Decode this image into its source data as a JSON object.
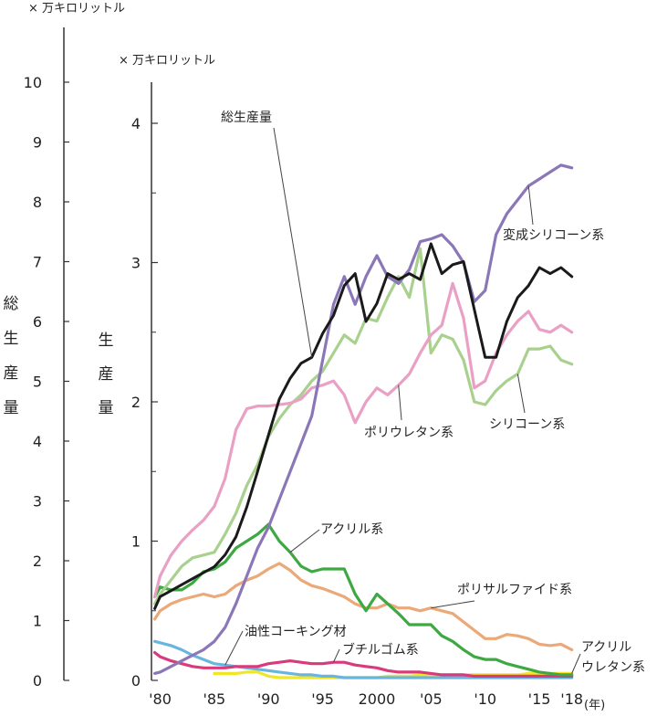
{
  "chart_data": {
    "type": "line",
    "left_axis": {
      "unit": "× 万キロリットル",
      "title": [
        "総",
        "生",
        "産",
        "量"
      ],
      "ticks": [
        "0",
        "1",
        "2",
        "3",
        "4",
        "5",
        "6",
        "7",
        "8",
        "9",
        "10"
      ],
      "ylim": [
        0,
        10
      ]
    },
    "right_axis": {
      "unit": "× 万キロリットル",
      "title": [
        "生",
        "産",
        "量"
      ],
      "ticks": [
        "0",
        "1",
        "2",
        "3",
        "4"
      ],
      "ylim": [
        0,
        4.3
      ]
    },
    "x_axis": {
      "tick_labels": [
        "'80",
        "'85",
        "'90",
        "'95",
        "2000",
        "'05",
        "'10",
        "'15",
        "'18"
      ],
      "tick_years": [
        1980,
        1985,
        1990,
        1995,
        2000,
        2005,
        2010,
        2015,
        2018
      ],
      "unit": "(年)",
      "xlim": [
        1979.2,
        2018.7
      ]
    },
    "series": [
      {
        "name": "総生産量",
        "axis": "left",
        "color": "#1a1a1a",
        "x": [
          1979.5,
          1980,
          1981,
          1982,
          1983,
          1984,
          1985,
          1986,
          1987,
          1988,
          1989,
          1990,
          1991,
          1992,
          1993,
          1994,
          1995,
          1996,
          1997,
          1998,
          1999,
          2000,
          2001,
          2002,
          2003,
          2004,
          2005,
          2006,
          2007,
          2008,
          2009,
          2010,
          2011,
          2012,
          2013,
          2014,
          2015,
          2016,
          2017,
          2018
        ],
        "values": [
          1.2,
          1.4,
          1.5,
          1.6,
          1.7,
          1.8,
          1.9,
          2.1,
          2.4,
          2.9,
          3.5,
          4.1,
          4.7,
          5.05,
          5.3,
          5.4,
          5.8,
          6.1,
          6.6,
          6.8,
          6.0,
          6.3,
          6.8,
          6.7,
          6.8,
          6.7,
          7.3,
          6.8,
          6.95,
          7.0,
          6.2,
          5.4,
          5.4,
          6.0,
          6.4,
          6.6,
          6.9,
          6.8,
          6.9,
          6.75
        ]
      },
      {
        "name": "変成シリコーン系",
        "axis": "right",
        "color": "#8b77b8",
        "x": [
          1979.5,
          1980,
          1981,
          1982,
          1983,
          1984,
          1985,
          1986,
          1987,
          1988,
          1989,
          1990,
          1991,
          1992,
          1993,
          1994,
          1995,
          1996,
          1997,
          1998,
          1999,
          2000,
          2001,
          2002,
          2003,
          2004,
          2005,
          2006,
          2007,
          2008,
          2009,
          2010,
          2011,
          2012,
          2013,
          2014,
          2015,
          2016,
          2017,
          2018
        ],
        "values": [
          0.05,
          0.06,
          0.1,
          0.14,
          0.18,
          0.22,
          0.28,
          0.38,
          0.55,
          0.75,
          0.95,
          1.1,
          1.3,
          1.5,
          1.7,
          1.9,
          2.3,
          2.7,
          2.9,
          2.7,
          2.9,
          3.05,
          2.9,
          2.85,
          2.95,
          3.15,
          3.17,
          3.2,
          3.12,
          3.0,
          2.72,
          2.8,
          3.2,
          3.35,
          3.45,
          3.55,
          3.6,
          3.65,
          3.7,
          3.68
        ]
      },
      {
        "name": "ポリウレタン系",
        "axis": "right",
        "color": "#eaa0c5",
        "x": [
          1979.5,
          1980,
          1981,
          1982,
          1983,
          1984,
          1985,
          1986,
          1987,
          1988,
          1989,
          1990,
          1991,
          1992,
          1993,
          1994,
          1995,
          1996,
          1997,
          1998,
          1999,
          2000,
          2001,
          2002,
          2003,
          2004,
          2005,
          2006,
          2007,
          2008,
          2009,
          2010,
          2011,
          2012,
          2013,
          2014,
          2015,
          2016,
          2017,
          2018
        ],
        "values": [
          0.6,
          0.75,
          0.9,
          1.0,
          1.08,
          1.15,
          1.25,
          1.45,
          1.8,
          1.95,
          1.97,
          1.97,
          1.98,
          1.99,
          2.02,
          2.1,
          2.12,
          2.15,
          2.05,
          1.85,
          2.0,
          2.1,
          2.05,
          2.12,
          2.2,
          2.35,
          2.48,
          2.55,
          2.85,
          2.6,
          2.1,
          2.15,
          2.35,
          2.48,
          2.58,
          2.65,
          2.52,
          2.5,
          2.55,
          2.5
        ]
      },
      {
        "name": "シリコーン系",
        "axis": "right",
        "color": "#a9d18e",
        "x": [
          1979.5,
          1980,
          1981,
          1982,
          1983,
          1984,
          1985,
          1986,
          1987,
          1988,
          1989,
          1990,
          1991,
          1992,
          1993,
          1994,
          1995,
          1996,
          1997,
          1998,
          1999,
          2000,
          2001,
          2002,
          2003,
          2004,
          2005,
          2006,
          2007,
          2008,
          2009,
          2010,
          2011,
          2012,
          2013,
          2014,
          2015,
          2016,
          2017,
          2018
        ],
        "values": [
          0.55,
          0.62,
          0.72,
          0.82,
          0.88,
          0.9,
          0.92,
          1.05,
          1.2,
          1.4,
          1.55,
          1.75,
          1.88,
          1.98,
          2.05,
          2.15,
          2.22,
          2.35,
          2.48,
          2.42,
          2.6,
          2.58,
          2.75,
          2.9,
          2.75,
          3.1,
          2.35,
          2.48,
          2.45,
          2.3,
          2.0,
          1.98,
          2.08,
          2.15,
          2.2,
          2.38,
          2.38,
          2.4,
          2.3,
          2.27
        ]
      },
      {
        "name": "アクリル系",
        "axis": "right",
        "color": "#3ea843",
        "x": [
          1979.5,
          1980,
          1981,
          1982,
          1983,
          1984,
          1985,
          1986,
          1987,
          1988,
          1989,
          1990,
          1991,
          1992,
          1993,
          1994,
          1995,
          1996,
          1997,
          1998,
          1999,
          2000,
          2001,
          2002,
          2003,
          2004,
          2005,
          2006,
          2007,
          2008,
          2009,
          2010,
          2011,
          2012,
          2013,
          2014,
          2015,
          2016,
          2017,
          2018
        ],
        "values": [
          0.6,
          0.67,
          0.65,
          0.65,
          0.7,
          0.78,
          0.8,
          0.85,
          0.95,
          1.0,
          1.05,
          1.12,
          1.0,
          0.92,
          0.82,
          0.78,
          0.8,
          0.8,
          0.8,
          0.62,
          0.5,
          0.62,
          0.55,
          0.48,
          0.4,
          0.4,
          0.4,
          0.32,
          0.28,
          0.22,
          0.17,
          0.15,
          0.15,
          0.12,
          0.1,
          0.08,
          0.06,
          0.05,
          0.04,
          0.04
        ]
      },
      {
        "name": "ポリサルファイド系",
        "axis": "right",
        "color": "#eba878",
        "x": [
          1979.5,
          1980,
          1981,
          1982,
          1983,
          1984,
          1985,
          1986,
          1987,
          1988,
          1989,
          1990,
          1991,
          1992,
          1993,
          1994,
          1995,
          1996,
          1997,
          1998,
          1999,
          2000,
          2001,
          2002,
          2003,
          2004,
          2005,
          2006,
          2007,
          2008,
          2009,
          2010,
          2011,
          2012,
          2013,
          2014,
          2015,
          2016,
          2017,
          2018
        ],
        "values": [
          0.44,
          0.5,
          0.55,
          0.58,
          0.6,
          0.62,
          0.6,
          0.62,
          0.68,
          0.72,
          0.75,
          0.8,
          0.84,
          0.79,
          0.72,
          0.68,
          0.66,
          0.63,
          0.6,
          0.55,
          0.52,
          0.52,
          0.55,
          0.52,
          0.52,
          0.5,
          0.52,
          0.5,
          0.48,
          0.42,
          0.36,
          0.3,
          0.3,
          0.33,
          0.32,
          0.3,
          0.26,
          0.25,
          0.26,
          0.22
        ]
      },
      {
        "name": "油性コーキング材",
        "axis": "right",
        "color": "#68b5e0",
        "x": [
          1979.5,
          1980,
          1981,
          1982,
          1983,
          1984,
          1985,
          1986,
          1987,
          1988,
          1989,
          1990,
          1991,
          1992,
          1993,
          1994,
          1995,
          1996,
          1997,
          1998,
          1999,
          2000,
          2001,
          2002,
          2003,
          2004,
          2005,
          2006,
          2007,
          2008,
          2009,
          2010,
          2011,
          2012,
          2013,
          2014,
          2015,
          2016,
          2017,
          2018
        ],
        "values": [
          0.28,
          0.27,
          0.25,
          0.22,
          0.18,
          0.15,
          0.12,
          0.11,
          0.1,
          0.09,
          0.08,
          0.07,
          0.06,
          0.05,
          0.04,
          0.04,
          0.03,
          0.03,
          0.02,
          0.02,
          0.02,
          0.02,
          0.02,
          0.02,
          0.02,
          0.02,
          0.02,
          0.02,
          0.02,
          0.02,
          0.02,
          0.02,
          0.02,
          0.02,
          0.02,
          0.02,
          0.02,
          0.02,
          0.02,
          0.02
        ]
      },
      {
        "name": "ブチルゴム系",
        "axis": "right",
        "color": "#d83a7c",
        "x": [
          1979.5,
          1980,
          1981,
          1982,
          1983,
          1984,
          1985,
          1986,
          1987,
          1988,
          1989,
          1990,
          1991,
          1992,
          1993,
          1994,
          1995,
          1996,
          1997,
          1998,
          1999,
          2000,
          2001,
          2002,
          2003,
          2004,
          2005,
          2006,
          2007,
          2008,
          2009,
          2010,
          2011,
          2012,
          2013,
          2014,
          2015,
          2016,
          2017,
          2018
        ],
        "values": [
          0.2,
          0.17,
          0.14,
          0.12,
          0.1,
          0.09,
          0.09,
          0.09,
          0.1,
          0.1,
          0.1,
          0.12,
          0.13,
          0.14,
          0.13,
          0.12,
          0.12,
          0.13,
          0.13,
          0.11,
          0.1,
          0.09,
          0.07,
          0.06,
          0.06,
          0.06,
          0.05,
          0.04,
          0.04,
          0.04,
          0.03,
          0.03,
          0.03,
          0.03,
          0.03,
          0.03,
          0.03,
          0.03,
          0.03,
          0.03
        ]
      },
      {
        "name": "アクリルウレタン系",
        "axis": "right",
        "color": "#f2e526",
        "x": [
          1985,
          1986,
          1987,
          1988,
          1989,
          1990,
          1991,
          1992,
          1993,
          1994,
          1995,
          1996,
          1997,
          1998,
          1999,
          2000,
          2001,
          2002,
          2003,
          2004,
          2005,
          2006,
          2007,
          2008,
          2009,
          2010,
          2011,
          2012,
          2013,
          2014,
          2015,
          2016,
          2017,
          2018
        ],
        "values": [
          0.05,
          0.05,
          0.05,
          0.06,
          0.06,
          0.03,
          0.02,
          0.02,
          0.02,
          0.02,
          0.02,
          0.02,
          0.02,
          0.02,
          0.02,
          0.02,
          0.03,
          0.03,
          0.03,
          0.04,
          0.04,
          0.04,
          0.04,
          0.04,
          0.04,
          0.04,
          0.04,
          0.04,
          0.04,
          0.05,
          0.05,
          0.05,
          0.05,
          0.05
        ]
      }
    ],
    "annotations": [
      {
        "text": "総生産量",
        "series": "総生産量"
      },
      {
        "text": "変成シリコーン系",
        "series": "変成シリコーン系"
      },
      {
        "text": "ポリウレタン系",
        "series": "ポリウレタン系"
      },
      {
        "text": "シリコーン系",
        "series": "シリコーン系"
      },
      {
        "text": "アクリル系",
        "series": "アクリル系"
      },
      {
        "text": "ポリサルファイド系",
        "series": "ポリサルファイド系"
      },
      {
        "text": "油性コーキング材",
        "series": "油性コーキング材"
      },
      {
        "text": "ブチルゴム系",
        "series": "ブチルゴム系"
      },
      {
        "text": "アクリル",
        "series": "アクリルウレタン系"
      },
      {
        "text": "ウレタン系",
        "series": "アクリルウレタン系"
      }
    ],
    "grid": false,
    "legend": "none"
  }
}
